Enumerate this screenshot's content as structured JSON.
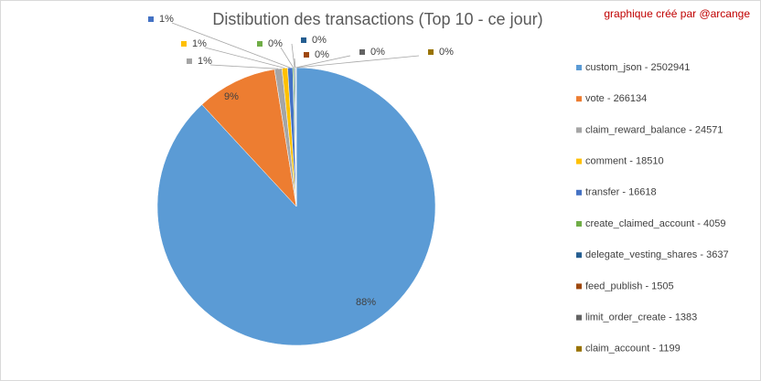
{
  "chart_data": {
    "type": "pie",
    "title": "Distibution des transactions  (Top 10 - ce jour)",
    "subtitle": "graphique créé par @arcange",
    "categories": [
      "custom_json - 2502941",
      "vote - 266134",
      "claim_reward_balance - 24571",
      "comment - 18510",
      "transfer - 16618",
      "create_claimed_account - 4059",
      "delegate_vesting_shares - 3637",
      "feed_publish - 1505",
      "limit_order_create - 1383",
      "claim_account - 1199"
    ],
    "values": [
      88.11,
      9.37,
      0.865,
      0.652,
      0.585,
      0.143,
      0.128,
      0.053,
      0.049,
      0.042
    ],
    "value_labels": [
      "88%",
      "9%",
      "1%",
      "1%",
      "1%",
      "0%",
      "0%",
      "0%",
      "0%",
      "0%"
    ],
    "colors": [
      "#5b9bd5",
      "#ed7d31",
      "#a5a5a5",
      "#ffc000",
      "#4472c4",
      "#70ad47",
      "#255e91",
      "#9e480e",
      "#636363",
      "#997300"
    ],
    "legend": "right"
  }
}
